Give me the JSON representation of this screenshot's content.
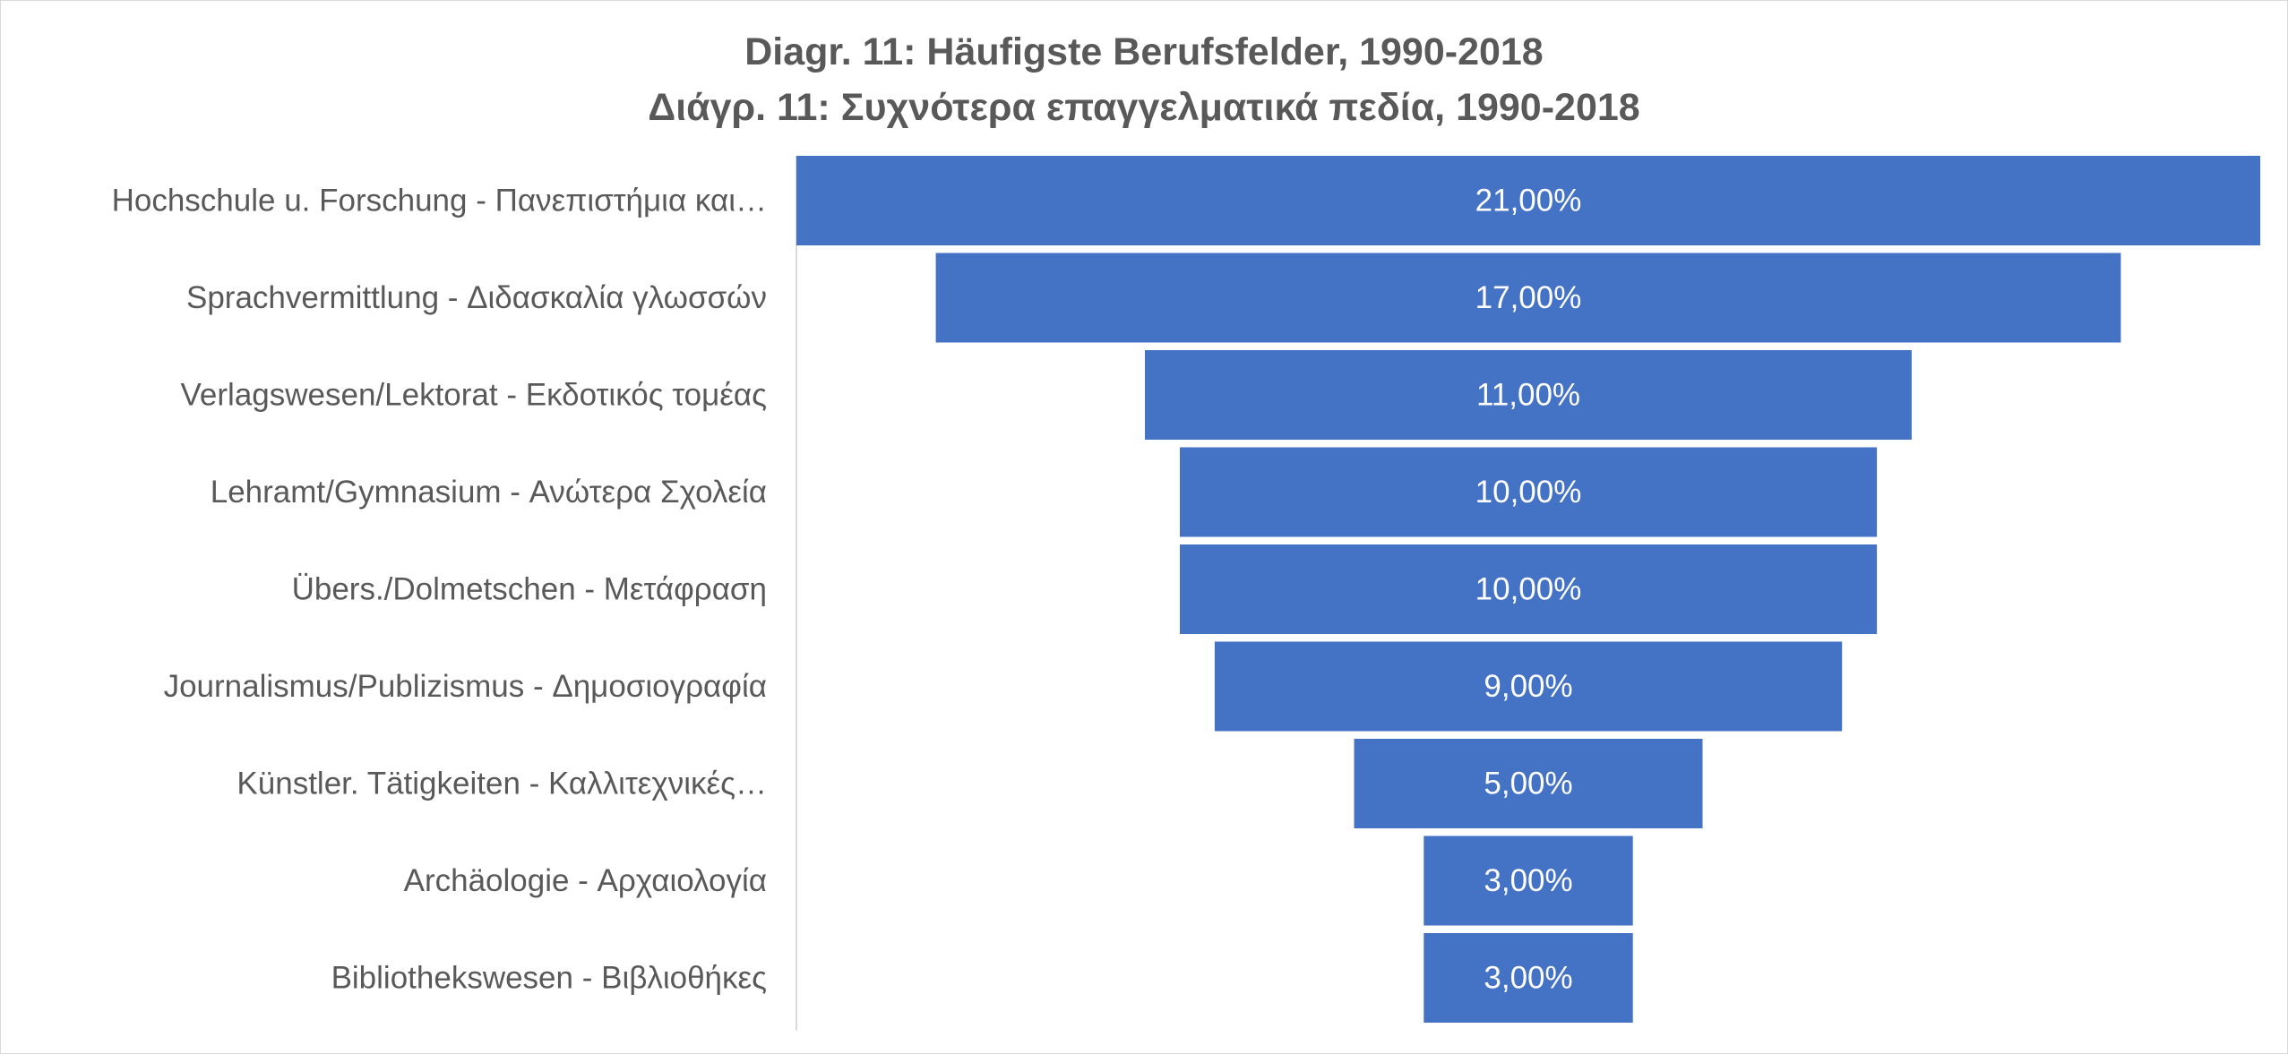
{
  "chart_data": {
    "type": "bar",
    "subtype": "funnel",
    "title": "Diagr. 11: Häufigste Berufsfelder, 1990-2018",
    "subtitle": "Διάγρ. 11: Συχνότερα επαγγελματικά πεδία, 1990-2018",
    "categories": [
      "Hochschule u. Forschung - Πανεπιστήμια και…",
      "Sprachvermittlung - Διδασκαλία γλωσσών",
      "Verlagswesen/Lektorat  - Εκδοτικός τομέας",
      "Lehramt/Gymnasium - Ανώτερα Σχολεία",
      "Übers./Dolmetschen - Μετάφραση",
      "Journalismus/Publizismus - Δημοσιογραφία",
      "Künstler. Tätigkeiten - Καλλιτεχνικές…",
      "Archäologie - Αρχαιολογία",
      "Bibliothekswesen - Βιβλιοθήκες"
    ],
    "values": [
      21,
      17,
      11,
      10,
      10,
      9,
      5,
      3,
      3
    ],
    "data_labels": [
      "21,00%",
      "17,00%",
      "11,00%",
      "10,00%",
      "10,00%",
      "9,00%",
      "5,00%",
      "3,00%",
      "3,00%"
    ],
    "unit": "%",
    "bar_color": "#4472c4",
    "label_color": "#595959",
    "axis_color": "#d9d9d9",
    "legend": "none",
    "grid": false
  }
}
